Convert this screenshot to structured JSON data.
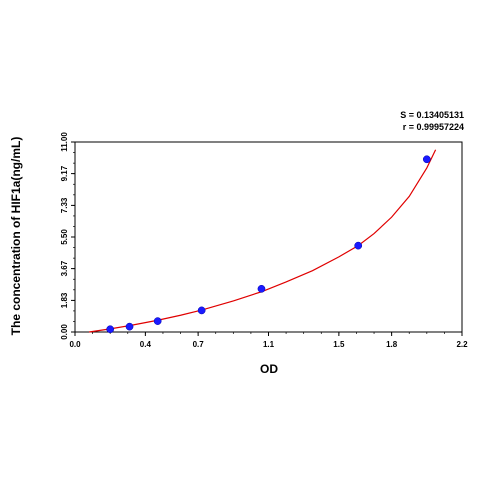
{
  "chart_data": {
    "type": "scatter",
    "title": "",
    "xlabel": "OD",
    "ylabel": "The concentration of HIF1a(ng/mL)",
    "xlim": [
      0.0,
      2.2
    ],
    "ylim": [
      0.0,
      11.0
    ],
    "x_ticks": [
      "0.0",
      "0.4",
      "0.7",
      "1.1",
      "1.5",
      "1.8",
      "2.2"
    ],
    "y_ticks": [
      "0.00",
      "1.83",
      "3.67",
      "5.50",
      "7.33",
      "9.17",
      "11.00"
    ],
    "grid": false,
    "stats": {
      "s_label": "S = 0.13405131",
      "r_label": "r = 0.99957224"
    },
    "series": [
      {
        "kind": "points",
        "color": "#1a1aff",
        "points": [
          {
            "x": 0.2,
            "y": 0.16
          },
          {
            "x": 0.31,
            "y": 0.31
          },
          {
            "x": 0.47,
            "y": 0.63
          },
          {
            "x": 0.72,
            "y": 1.25
          },
          {
            "x": 1.06,
            "y": 2.5
          },
          {
            "x": 1.61,
            "y": 5.0
          },
          {
            "x": 2.0,
            "y": 10.0
          }
        ]
      },
      {
        "kind": "fit-curve",
        "color": "#e00000",
        "points": [
          {
            "x": 0.08,
            "y": 0.0
          },
          {
            "x": 0.2,
            "y": 0.18
          },
          {
            "x": 0.31,
            "y": 0.37
          },
          {
            "x": 0.47,
            "y": 0.68
          },
          {
            "x": 0.6,
            "y": 0.97
          },
          {
            "x": 0.72,
            "y": 1.27
          },
          {
            "x": 0.9,
            "y": 1.8
          },
          {
            "x": 1.06,
            "y": 2.33
          },
          {
            "x": 1.2,
            "y": 2.9
          },
          {
            "x": 1.35,
            "y": 3.55
          },
          {
            "x": 1.5,
            "y": 4.35
          },
          {
            "x": 1.61,
            "y": 5.0
          },
          {
            "x": 1.7,
            "y": 5.7
          },
          {
            "x": 1.8,
            "y": 6.65
          },
          {
            "x": 1.9,
            "y": 7.85
          },
          {
            "x": 2.0,
            "y": 9.5
          },
          {
            "x": 2.05,
            "y": 10.55
          }
        ]
      }
    ]
  }
}
